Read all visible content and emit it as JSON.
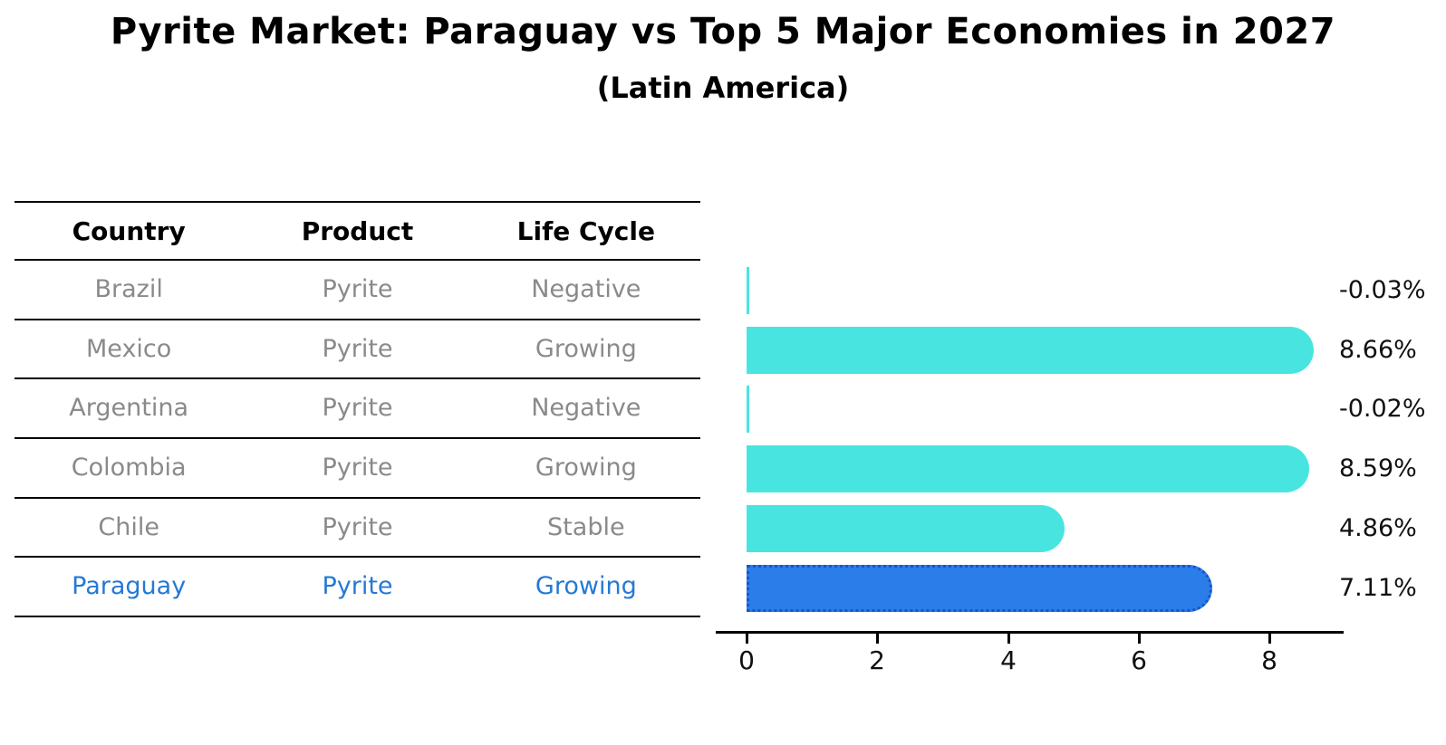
{
  "header": {
    "title": "Pyrite Market: Paraguay vs Top 5 Major Economies in 2027",
    "subtitle": "(Latin America)"
  },
  "table": {
    "columns": [
      "Country",
      "Product",
      "Life Cycle"
    ],
    "rows": [
      {
        "country": "Brazil",
        "product": "Pyrite",
        "life_cycle": "Negative",
        "highlight": false
      },
      {
        "country": "Mexico",
        "product": "Pyrite",
        "life_cycle": "Growing",
        "highlight": false
      },
      {
        "country": "Argentina",
        "product": "Pyrite",
        "life_cycle": "Negative",
        "highlight": false
      },
      {
        "country": "Colombia",
        "product": "Pyrite",
        "life_cycle": "Growing",
        "highlight": false
      },
      {
        "country": "Chile",
        "product": "Pyrite",
        "life_cycle": "Stable",
        "highlight": false
      },
      {
        "country": "Paraguay",
        "product": "Pyrite",
        "life_cycle": "Growing",
        "highlight": true
      }
    ]
  },
  "chart_data": {
    "type": "bar",
    "orientation": "horizontal",
    "title": "Pyrite Market: Paraguay vs Top 5 Major Economies in 2027",
    "subtitle": "(Latin America)",
    "categories": [
      "Brazil",
      "Mexico",
      "Argentina",
      "Colombia",
      "Chile",
      "Paraguay"
    ],
    "values": [
      -0.03,
      8.66,
      -0.02,
      8.59,
      4.86,
      7.11
    ],
    "value_labels": [
      "-0.03%",
      "8.66%",
      "-0.02%",
      "8.59%",
      "4.86%",
      "7.11%"
    ],
    "xlabel": "",
    "ylabel": "",
    "xticks": [
      "0",
      "2",
      "4",
      "6",
      "8"
    ],
    "xlim": [
      0,
      9.1
    ],
    "grid": false,
    "legend": "none",
    "bar_color": "#48e5e0",
    "highlight_index": 5,
    "highlight_color": "#2b7de9",
    "highlight_border_color": "#1756c9"
  },
  "colors": {
    "background": "#ffffff",
    "table_text": "#8a8a8a",
    "header_text": "#000000",
    "highlight_text": "#2579d4",
    "axis": "#000000",
    "value_text": "#111111"
  }
}
